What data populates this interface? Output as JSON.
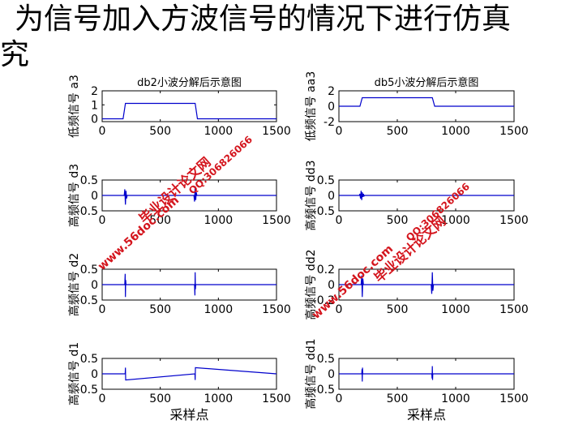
{
  "slide_title": {
    "line1": "为信号加入方波信号的情况下进行仿真",
    "line2": "究"
  },
  "watermarks": {
    "left_site": "www.56doc.com",
    "left_brand": "毕业设计论文网",
    "left_qq": "QQ:306826066",
    "right_site": "www.56doc.com",
    "right_brand": "毕业设计论文网",
    "right_qq": "QQ:306826066"
  },
  "colors": {
    "series": "#0000cc",
    "axis": "#000000",
    "watermark": "#d4151d"
  },
  "chart_data": [
    {
      "type": "line",
      "title": "db2小波分解后示意图",
      "ylabel": "低频信号 a3",
      "xlabel": "",
      "xlim": [
        0,
        1500
      ],
      "ylim": [
        -0.2,
        2
      ],
      "xticks": [
        0,
        500,
        1000,
        1500
      ],
      "yticks": [
        0,
        1,
        2
      ],
      "series": [
        {
          "x": [
            0,
            180,
            200,
            800,
            820,
            1500
          ],
          "y": [
            0,
            0,
            1.1,
            1.1,
            0,
            0
          ]
        }
      ]
    },
    {
      "type": "line",
      "title": "db5小波分解后示意图",
      "ylabel": "低频信号 aa3",
      "xlabel": "",
      "xlim": [
        0,
        1500
      ],
      "ylim": [
        -2,
        2
      ],
      "xticks": [
        0,
        500,
        1000,
        1500
      ],
      "yticks": [
        -2,
        0,
        2
      ],
      "series": [
        {
          "x": [
            0,
            180,
            200,
            800,
            820,
            1500
          ],
          "y": [
            0,
            0,
            1.1,
            1.1,
            0,
            0
          ]
        }
      ]
    },
    {
      "type": "line",
      "title": "",
      "ylabel": "高频信号 d3",
      "xlabel": "",
      "xlim": [
        0,
        1500
      ],
      "ylim": [
        -0.5,
        0.5
      ],
      "xticks": [
        0,
        500,
        1000,
        1500
      ],
      "yticks": [
        -0.5,
        0,
        0.5
      ],
      "series": [
        {
          "x": [
            0,
            190,
            195,
            200,
            205,
            210,
            215,
            790,
            795,
            800,
            805,
            810,
            815,
            1500
          ],
          "y": [
            0,
            0,
            0.2,
            -0.3,
            0.15,
            -0.1,
            0,
            0,
            -0.2,
            0.3,
            -0.15,
            0.1,
            0,
            0
          ]
        }
      ]
    },
    {
      "type": "line",
      "title": "",
      "ylabel": "高频信号 dd3",
      "xlabel": "",
      "xlim": [
        0,
        1500
      ],
      "ylim": [
        -0.5,
        0.5
      ],
      "xticks": [
        0,
        500,
        1000,
        1500
      ],
      "yticks": [
        -0.5,
        0,
        0.5
      ],
      "series": [
        {
          "x": [
            0,
            175,
            180,
            185,
            190,
            195,
            200,
            205,
            210,
            215,
            220,
            1500
          ],
          "y": [
            0,
            0,
            0.05,
            -0.1,
            0.15,
            -0.15,
            0.1,
            -0.05,
            0.05,
            -0.02,
            0,
            0
          ]
        }
      ]
    },
    {
      "type": "line",
      "title": "",
      "ylabel": "高频信号 d2",
      "xlabel": "",
      "xlim": [
        0,
        1500
      ],
      "ylim": [
        -0.5,
        0.5
      ],
      "xticks": [
        0,
        500,
        1000,
        1500
      ],
      "yticks": [
        -0.5,
        0,
        0.5
      ],
      "series": [
        {
          "x": [
            0,
            195,
            198,
            200,
            202,
            205,
            795,
            798,
            800,
            802,
            805,
            1500
          ],
          "y": [
            0,
            0,
            0.35,
            -0.4,
            0.15,
            0,
            0,
            -0.35,
            0.4,
            -0.15,
            0,
            0
          ]
        }
      ]
    },
    {
      "type": "line",
      "title": "",
      "ylabel": "高频信号 dd2",
      "xlabel": "",
      "xlim": [
        0,
        1500
      ],
      "ylim": [
        -0.2,
        0.2
      ],
      "xticks": [
        0,
        500,
        1000,
        1500
      ],
      "yticks": [
        -0.2,
        0,
        0.2
      ],
      "series": [
        {
          "x": [
            0,
            190,
            195,
            200,
            205,
            210,
            790,
            795,
            800,
            805,
            810,
            1500
          ],
          "y": [
            0,
            0,
            0.12,
            -0.16,
            0.08,
            0,
            0,
            -0.12,
            0.16,
            -0.08,
            0,
            0
          ]
        }
      ]
    },
    {
      "type": "line",
      "title": "",
      "ylabel": "高频信号 d1",
      "xlabel": "采样点",
      "xlim": [
        0,
        1500
      ],
      "ylim": [
        -0.5,
        0.5
      ],
      "xticks": [
        0,
        500,
        1000,
        1500
      ],
      "yticks": [
        -0.5,
        0,
        0.5
      ],
      "series": [
        {
          "x": [
            0,
            198,
            200,
            202,
            798,
            800,
            802,
            1500
          ],
          "y": [
            0,
            0,
            0.2,
            -0.2,
            0,
            -0.2,
            0.2,
            0
          ]
        }
      ]
    },
    {
      "type": "line",
      "title": "",
      "ylabel": "高频信号 dd1",
      "xlabel": "采样点",
      "xlim": [
        0,
        1500
      ],
      "ylim": [
        -0.5,
        0.5
      ],
      "xticks": [
        0,
        500,
        1000,
        1500
      ],
      "yticks": [
        -0.5,
        0,
        0.5
      ],
      "series": [
        {
          "x": [
            0,
            196,
            198,
            200,
            202,
            204,
            796,
            798,
            800,
            802,
            804,
            1500
          ],
          "y": [
            0,
            0,
            0.15,
            -0.25,
            0.2,
            0,
            0,
            -0.15,
            0.25,
            -0.2,
            0,
            0
          ]
        }
      ]
    }
  ]
}
